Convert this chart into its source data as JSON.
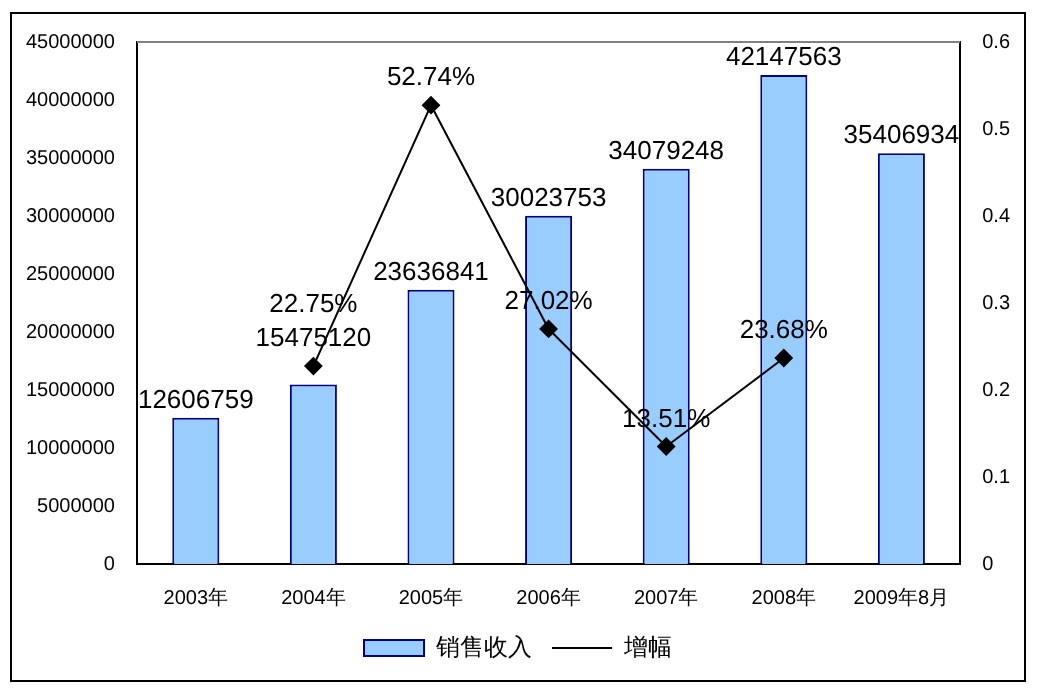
{
  "chart_data": {
    "type": "bar",
    "categories": [
      "2003年",
      "2004年",
      "2005年",
      "2006年",
      "2007年",
      "2008年",
      "2009年8月"
    ],
    "series": [
      {
        "name": "销售收入",
        "color": "#99ccff",
        "values": [
          12606759,
          15475120,
          23636841,
          30023753,
          34079248,
          42147563,
          35406934
        ],
        "value_labels": [
          "12606759",
          "15475120",
          "23636841",
          "30023753",
          "34079248",
          "42147563",
          "35406934"
        ]
      },
      {
        "name": "增幅",
        "type": "line",
        "axis": "y2",
        "color": "#000000",
        "marker": "diamond",
        "values": [
          null,
          0.2275,
          0.5274,
          0.2702,
          0.1351,
          0.2368,
          null
        ],
        "value_labels": [
          null,
          "22.75%",
          "52.74%",
          "27.02%",
          "13.51%",
          "23.68%",
          null
        ]
      }
    ],
    "ylim": [
      0,
      45000000
    ],
    "yticks": [
      0,
      5000000,
      10000000,
      15000000,
      20000000,
      25000000,
      30000000,
      35000000,
      40000000,
      45000000
    ],
    "y2lim": [
      0,
      0.6
    ],
    "y2ticks": [
      0,
      0.1,
      0.2,
      0.3,
      0.4,
      0.5,
      0.6
    ],
    "grid": false,
    "legend": "bottom"
  }
}
